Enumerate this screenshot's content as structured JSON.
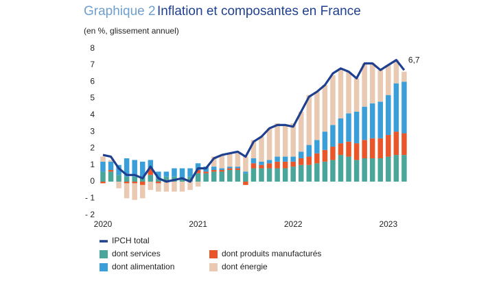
{
  "chart_data": {
    "type": "bar",
    "stacked": true,
    "chart_label": "Graphique 2",
    "title": "Inflation et composantes en France",
    "subtitle": "(en %, glissement annuel)",
    "categories": [
      "2020",
      null,
      null,
      null,
      null,
      null,
      null,
      null,
      null,
      null,
      null,
      null,
      "2021",
      null,
      null,
      null,
      null,
      null,
      null,
      null,
      null,
      null,
      null,
      null,
      "2022",
      null,
      null,
      null,
      null,
      null,
      null,
      null,
      null,
      null,
      null,
      null,
      "2023",
      null,
      null
    ],
    "ylim": [
      -2,
      8
    ],
    "yticks": [
      {
        "value": -2,
        "label": "- 2"
      },
      {
        "value": -1,
        "label": "- 1"
      },
      0,
      1,
      2,
      3,
      4,
      5,
      6,
      7,
      8
    ],
    "series": [
      {
        "name": "IPCH total",
        "type": "line",
        "color": "#1f3f8f",
        "values": [
          1.6,
          1.5,
          0.8,
          0.4,
          0.4,
          0.2,
          0.9,
          0.2,
          0.0,
          0.1,
          0.2,
          0.0,
          0.8,
          0.8,
          1.4,
          1.6,
          1.7,
          1.8,
          1.5,
          2.4,
          2.7,
          3.2,
          3.4,
          3.4,
          3.3,
          4.2,
          5.1,
          5.4,
          5.8,
          6.5,
          6.8,
          6.6,
          6.2,
          7.1,
          7.1,
          6.7,
          7.0,
          7.3,
          6.7
        ],
        "value_labels": [
          null,
          null,
          null,
          null,
          null,
          null,
          null,
          null,
          null,
          null,
          null,
          null,
          null,
          null,
          null,
          null,
          null,
          null,
          null,
          null,
          null,
          null,
          null,
          null,
          null,
          null,
          null,
          null,
          null,
          null,
          null,
          null,
          null,
          null,
          null,
          null,
          null,
          null,
          "6,7"
        ]
      },
      {
        "name": "dont services",
        "color": "#4aa59a",
        "values": [
          0.6,
          0.6,
          0.4,
          0.3,
          0.3,
          0.3,
          0.4,
          0.2,
          0.3,
          0.3,
          0.2,
          0.3,
          0.5,
          0.5,
          0.6,
          0.6,
          0.7,
          0.7,
          0.5,
          0.8,
          0.8,
          0.8,
          0.8,
          0.8,
          0.9,
          1.0,
          1.0,
          1.1,
          1.2,
          1.3,
          1.6,
          1.5,
          1.3,
          1.4,
          1.4,
          1.4,
          1.5,
          1.6,
          1.6
        ]
      },
      {
        "name": "dont produits manufacturés",
        "color": "#e8562a",
        "values": [
          -0.1,
          0.1,
          0.0,
          -0.1,
          -0.1,
          -0.2,
          0.4,
          -0.1,
          0.0,
          0.0,
          0.0,
          0.0,
          0.2,
          0.1,
          0.1,
          0.1,
          0.1,
          0.1,
          -0.2,
          0.3,
          0.2,
          0.3,
          0.4,
          0.4,
          0.3,
          0.4,
          0.5,
          0.6,
          0.7,
          0.8,
          0.7,
          0.9,
          1.0,
          1.1,
          1.2,
          1.2,
          1.3,
          1.4,
          1.3
        ]
      },
      {
        "name": "dont alimentation",
        "color": "#3a9fd8",
        "values": [
          0.6,
          0.5,
          0.6,
          1.1,
          1.0,
          0.9,
          0.5,
          0.4,
          0.3,
          0.5,
          0.6,
          0.5,
          0.4,
          0.3,
          0.2,
          0.1,
          0.1,
          0.1,
          0.1,
          0.3,
          0.2,
          0.2,
          0.3,
          0.3,
          0.3,
          0.4,
          0.7,
          0.8,
          1.1,
          1.3,
          1.5,
          1.7,
          1.9,
          2.0,
          2.1,
          2.2,
          2.4,
          2.9,
          3.1
        ]
      },
      {
        "name": "dont énergie",
        "color": "#e9c9b1",
        "values": [
          0.3,
          0.1,
          -0.4,
          -0.9,
          -1.0,
          -0.8,
          -0.5,
          -0.5,
          -0.6,
          -0.6,
          -0.6,
          -0.5,
          -0.3,
          0.0,
          0.6,
          0.8,
          0.8,
          0.9,
          0.9,
          1.1,
          1.5,
          1.9,
          2.0,
          1.9,
          2.0,
          2.4,
          3.0,
          2.9,
          2.8,
          3.0,
          3.0,
          2.5,
          2.0,
          2.6,
          2.4,
          1.9,
          1.8,
          1.4,
          0.6
        ]
      }
    ]
  }
}
